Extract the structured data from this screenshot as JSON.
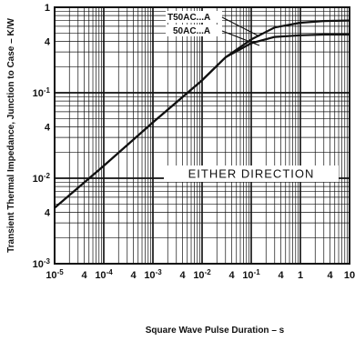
{
  "chart_data": {
    "type": "line",
    "xlabel": "Square Wave Pulse Duration – s",
    "ylabel": "Transient Thermal Impedance, Junction to Case – K/W",
    "xscale": "log",
    "yscale": "log",
    "xlim": [
      1e-05,
      10
    ],
    "ylim": [
      0.001,
      1
    ],
    "grid": true,
    "x_tick_labels": [
      "10-5",
      "4",
      "10-4",
      "4",
      "10-3",
      "4",
      "10-2",
      "4",
      "10-1",
      "4",
      "1",
      "4",
      "10"
    ],
    "y_tick_labels": [
      "1",
      "4",
      "10-1",
      "4",
      "10-2",
      "4",
      "10-3"
    ],
    "annotation": "EITHER DIRECTION",
    "series": [
      {
        "name": "T50AC...A",
        "x": [
          1e-05,
          0.0001,
          0.001,
          0.01,
          0.03,
          0.1,
          0.3,
          1,
          3,
          10
        ],
        "y": [
          0.0045,
          0.014,
          0.045,
          0.14,
          0.26,
          0.42,
          0.58,
          0.66,
          0.69,
          0.7
        ]
      },
      {
        "name": "50AC...A",
        "x": [
          1e-05,
          0.0001,
          0.001,
          0.01,
          0.03,
          0.1,
          0.3,
          1,
          3,
          10
        ],
        "y": [
          0.0045,
          0.014,
          0.045,
          0.14,
          0.26,
          0.38,
          0.45,
          0.47,
          0.48,
          0.48
        ]
      }
    ]
  }
}
